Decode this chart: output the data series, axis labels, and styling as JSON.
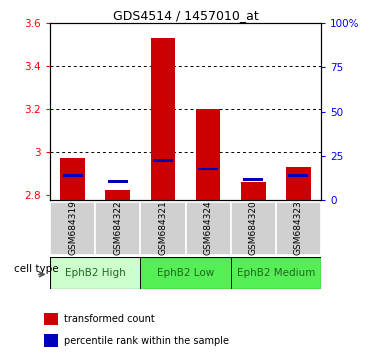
{
  "title": "GDS4514 / 1457010_at",
  "samples": [
    "GSM684319",
    "GSM684322",
    "GSM684321",
    "GSM684324",
    "GSM684320",
    "GSM684323"
  ],
  "groups_info": [
    {
      "name": "EphB2 High",
      "start": 0,
      "end": 1,
      "color": "#ccffcc"
    },
    {
      "name": "EphB2 Low",
      "start": 2,
      "end": 3,
      "color": "#55ee55"
    },
    {
      "name": "EphB2 Medium",
      "start": 4,
      "end": 5,
      "color": "#55ee55"
    }
  ],
  "red_values": [
    2.97,
    2.82,
    3.53,
    3.2,
    2.86,
    2.93
  ],
  "blue_values": [
    2.89,
    2.86,
    2.96,
    2.92,
    2.87,
    2.89
  ],
  "ylim_left": [
    2.775,
    3.6
  ],
  "ylim_right": [
    0,
    100
  ],
  "yticks_left": [
    2.8,
    3.0,
    3.2,
    3.4,
    3.6
  ],
  "yticks_right": [
    0,
    25,
    50,
    75,
    100
  ],
  "bar_width": 0.55,
  "baseline": 2.775,
  "cell_type_label": "cell type",
  "red_color": "#cc0000",
  "blue_color": "#0000bb",
  "sample_bg": "#d0d0d0",
  "grid_color": "#000000",
  "title_fontsize": 9,
  "tick_fontsize": 7.5,
  "sample_fontsize": 6.5,
  "group_fontsize": 7.5
}
